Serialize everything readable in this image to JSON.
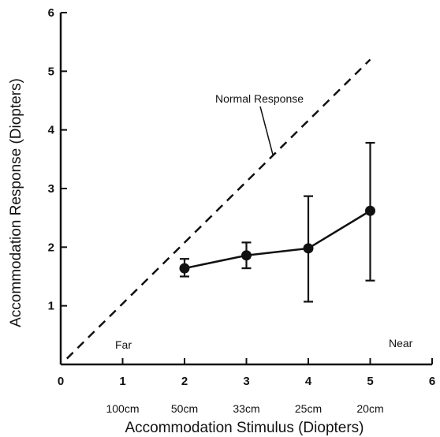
{
  "chart_data": {
    "type": "scatter",
    "xlabel": "Accommodation Stimulus (Diopters)",
    "ylabel": "Accommodation Response (Diopters)",
    "xlim": [
      0,
      6
    ],
    "ylim": [
      0,
      6
    ],
    "x_ticks": [
      "0",
      "1",
      "2",
      "3",
      "4",
      "5",
      "6"
    ],
    "y_ticks": [
      "1",
      "2",
      "3",
      "4",
      "5",
      "6"
    ],
    "distance_labels": [
      {
        "x": 1,
        "label": "100cm"
      },
      {
        "x": 2,
        "label": "50cm"
      },
      {
        "x": 3,
        "label": "33cm"
      },
      {
        "x": 4,
        "label": "25cm"
      },
      {
        "x": 5,
        "label": "20cm"
      }
    ],
    "series": [
      {
        "style": "line-with-markers",
        "x": [
          2,
          3,
          4,
          5
        ],
        "y": [
          1.64,
          1.86,
          1.98,
          2.62
        ],
        "y_err_low": [
          1.5,
          1.64,
          1.07,
          1.43
        ],
        "y_err_high": [
          1.8,
          2.08,
          2.87,
          3.78
        ]
      }
    ],
    "reference_line": {
      "label": "Normal Response",
      "style": "dashed",
      "x": [
        0.1,
        5.0
      ],
      "y": [
        0.1,
        5.2
      ]
    },
    "annotations": {
      "far": "Far",
      "near": "Near"
    },
    "grid": false
  }
}
